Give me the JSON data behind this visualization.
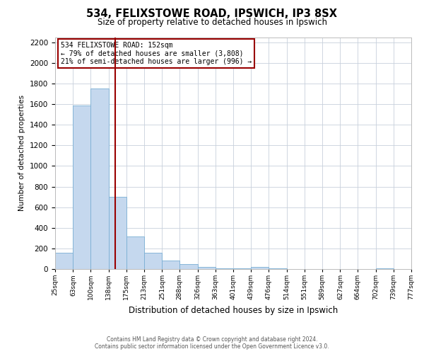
{
  "title": "534, FELIXSTOWE ROAD, IPSWICH, IP3 8SX",
  "subtitle": "Size of property relative to detached houses in Ipswich",
  "xlabel": "Distribution of detached houses by size in Ipswich",
  "ylabel": "Number of detached properties",
  "bin_edges": [
    25,
    63,
    100,
    138,
    175,
    213,
    251,
    288,
    326,
    363,
    401,
    439,
    476,
    514,
    551,
    589,
    627,
    664,
    702,
    739,
    777
  ],
  "bin_labels": [
    "25sqm",
    "63sqm",
    "100sqm",
    "138sqm",
    "175sqm",
    "213sqm",
    "251sqm",
    "288sqm",
    "326sqm",
    "363sqm",
    "401sqm",
    "439sqm",
    "476sqm",
    "514sqm",
    "551sqm",
    "589sqm",
    "627sqm",
    "664sqm",
    "702sqm",
    "739sqm",
    "777sqm"
  ],
  "values": [
    160,
    1590,
    1750,
    700,
    315,
    155,
    80,
    50,
    20,
    10,
    5,
    20,
    5,
    0,
    0,
    0,
    0,
    0,
    5,
    0,
    0
  ],
  "bar_color": "#c5d8ee",
  "bar_edge_color": "#7aafd4",
  "vline_x": 152,
  "vline_color": "#990000",
  "annotation_text": "534 FELIXSTOWE ROAD: 152sqm\n← 79% of detached houses are smaller (3,808)\n21% of semi-detached houses are larger (996) →",
  "annotation_box_color": "#ffffff",
  "annotation_box_edge_color": "#990000",
  "ylim": [
    0,
    2250
  ],
  "yticks": [
    0,
    200,
    400,
    600,
    800,
    1000,
    1200,
    1400,
    1600,
    1800,
    2000,
    2200
  ],
  "footer_line1": "Contains HM Land Registry data © Crown copyright and database right 2024.",
  "footer_line2": "Contains public sector information licensed under the Open Government Licence v3.0.",
  "background_color": "#ffffff",
  "grid_color": "#c8d0dc"
}
